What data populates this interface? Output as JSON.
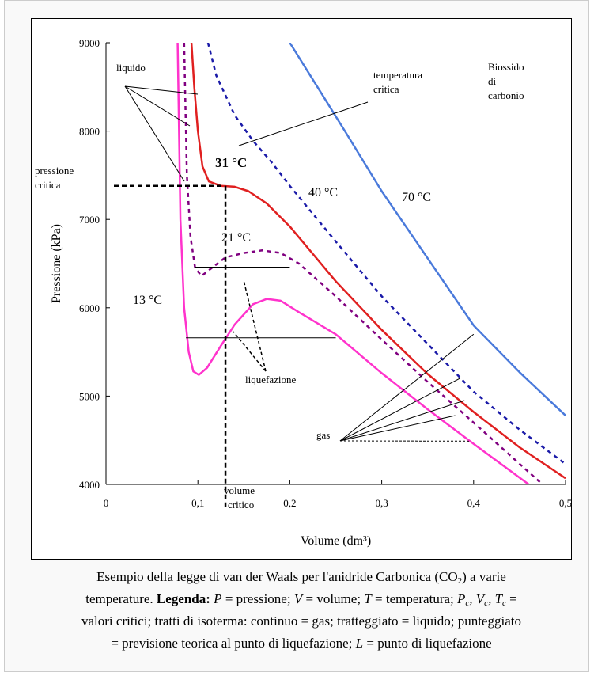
{
  "chart_data": {
    "type": "line",
    "xlabel": "Volume (dm³)",
    "ylabel": "Pressione (kPa)",
    "xlim": [
      0,
      0.5
    ],
    "ylim": [
      4000,
      9000
    ],
    "x_ticks": [
      "0",
      "0,1",
      "0,2",
      "0,3",
      "0,4",
      "0,5"
    ],
    "y_ticks": [
      "4000",
      "5000",
      "6000",
      "7000",
      "8000",
      "9000"
    ],
    "grid": false,
    "series": [
      {
        "name": "13 °C",
        "color": "#ff33cc",
        "style": "solid",
        "points": [
          [
            0.078,
            9000
          ],
          [
            0.081,
            7000
          ],
          [
            0.085,
            6000
          ],
          [
            0.09,
            5500
          ],
          [
            0.095,
            5280
          ],
          [
            0.101,
            5240
          ],
          [
            0.11,
            5320
          ],
          [
            0.125,
            5570
          ],
          [
            0.14,
            5810
          ],
          [
            0.16,
            6040
          ],
          [
            0.175,
            6100
          ],
          [
            0.19,
            6080
          ],
          [
            0.21,
            5950
          ],
          [
            0.25,
            5700
          ],
          [
            0.3,
            5260
          ],
          [
            0.35,
            4850
          ],
          [
            0.4,
            4460
          ],
          [
            0.46,
            4000
          ]
        ]
      },
      {
        "name": "21 °C",
        "color": "#800080",
        "style": "dashed",
        "points": [
          [
            0.085,
            9000
          ],
          [
            0.088,
            7500
          ],
          [
            0.092,
            6800
          ],
          [
            0.097,
            6450
          ],
          [
            0.104,
            6360
          ],
          [
            0.115,
            6450
          ],
          [
            0.13,
            6570
          ],
          [
            0.15,
            6620
          ],
          [
            0.17,
            6650
          ],
          [
            0.19,
            6620
          ],
          [
            0.21,
            6500
          ],
          [
            0.25,
            6130
          ],
          [
            0.3,
            5640
          ],
          [
            0.35,
            5160
          ],
          [
            0.4,
            4700
          ],
          [
            0.475,
            4000
          ]
        ]
      },
      {
        "name": "31 °C",
        "color": "#e02020",
        "style": "solid",
        "points": [
          [
            0.093,
            9000
          ],
          [
            0.096,
            8500
          ],
          [
            0.1,
            8000
          ],
          [
            0.105,
            7600
          ],
          [
            0.112,
            7430
          ],
          [
            0.125,
            7380
          ],
          [
            0.14,
            7370
          ],
          [
            0.155,
            7320
          ],
          [
            0.175,
            7180
          ],
          [
            0.2,
            6920
          ],
          [
            0.25,
            6300
          ],
          [
            0.3,
            5750
          ],
          [
            0.35,
            5250
          ],
          [
            0.4,
            4820
          ],
          [
            0.45,
            4420
          ],
          [
            0.5,
            4070
          ]
        ]
      },
      {
        "name": "40 °C",
        "color": "#1a1aa8",
        "style": "dashed",
        "points": [
          [
            0.111,
            9000
          ],
          [
            0.12,
            8630
          ],
          [
            0.14,
            8180
          ],
          [
            0.16,
            7890
          ],
          [
            0.18,
            7650
          ],
          [
            0.2,
            7380
          ],
          [
            0.25,
            6750
          ],
          [
            0.3,
            6130
          ],
          [
            0.35,
            5590
          ],
          [
            0.4,
            5050
          ],
          [
            0.45,
            4620
          ],
          [
            0.5,
            4230
          ]
        ]
      },
      {
        "name": "70 °C",
        "color": "#4a7adb",
        "style": "solid",
        "points": [
          [
            0.2,
            9000
          ],
          [
            0.23,
            8500
          ],
          [
            0.26,
            8000
          ],
          [
            0.3,
            7320
          ],
          [
            0.35,
            6560
          ],
          [
            0.4,
            5800
          ],
          [
            0.45,
            5270
          ],
          [
            0.5,
            4780
          ]
        ]
      }
    ],
    "annotations": {
      "liquid": "liquido",
      "critical_temperature": "temperatura critica",
      "substance": "Biossido di carbonio",
      "critical_pressure": "pressione critica",
      "label_31": "31 °C",
      "label_40": "40 °C",
      "label_70": "70 °C",
      "label_21": "21 °C",
      "label_13": "13 °C",
      "liquefaction": "liquefazione",
      "gas": "gas",
      "critical_volume": "volume critico"
    }
  },
  "caption": {
    "line1_pre": "Esempio della legge di van der Waals per l'anidride Carbonica (CO",
    "line1_sub": "2",
    "line1_post": ") a varie",
    "line2_pre": "temperature. ",
    "legend_label": "Legenda:",
    "p_sym": "P",
    "p_def": " = pressione; ",
    "v_sym": "V",
    "v_def": " = volume; ",
    "t_sym": "T",
    "t_def": " = temperatura; ",
    "pc_sym": "P",
    "pc_sub": "c",
    "sep1": ", ",
    "vc_sym": "V",
    "vc_sub": "c",
    "sep2": ", ",
    "tc_sym": "T",
    "tc_sub": "c",
    "eq": " =",
    "line3": "valori critici; tratti di isoterma: continuo = gas; tratteggiato = liquido; punteggiato",
    "line4_pre": "= previsione teorica al punto di liquefazione; ",
    "l_sym": "L",
    "line4_post": " = punto di liquefazione"
  }
}
